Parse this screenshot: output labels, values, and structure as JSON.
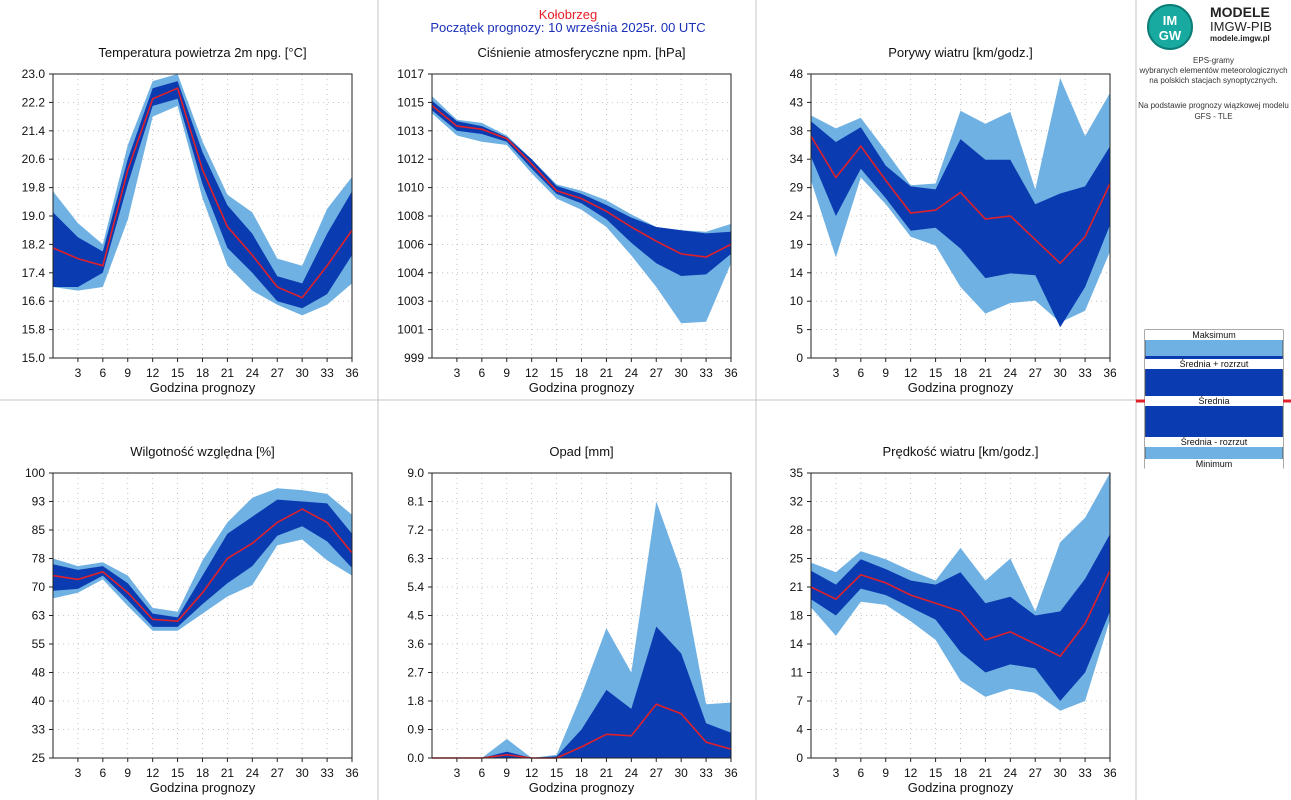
{
  "header": {
    "station": "Kołobrzeg",
    "start": "Początek prognozy: 10 września 2025r. 00 UTC"
  },
  "branding": {
    "logo_text": "IMGW",
    "line1": "MODELE",
    "line2": "IMGW-PIB",
    "line3": "modele.imgw.pl"
  },
  "description": {
    "line1": "EPS-gramy",
    "line2": "wybranych elementów meteorologicznych",
    "line3": "na polskich stacjach synoptycznych.",
    "line4": "Na podstawie prognozy wiązkowej modelu",
    "line5": "GFS - TLE"
  },
  "legend": {
    "max": "Maksimum",
    "mean_plus": "Średnia + rozrzut",
    "mean": "Średnia",
    "mean_minus": "Średnia - rozrzut",
    "min": "Minimum"
  },
  "colors": {
    "light": "#6fb1e3",
    "dark": "#0a3bb0",
    "mean": "#e0202a",
    "grid": "#b8b8b8",
    "divider": "#c4c4c4",
    "legend_bar": "#e0202a"
  },
  "chart_data": [
    {
      "type": "area",
      "id": "temp",
      "title": "Temperatura powietrza 2m npg. [°C]",
      "xlabel": "Godzina prognozy",
      "x": [
        0,
        3,
        6,
        9,
        12,
        15,
        18,
        21,
        24,
        27,
        30,
        33,
        36
      ],
      "x_ticks": [
        3,
        6,
        9,
        12,
        15,
        18,
        21,
        24,
        27,
        30,
        33,
        36
      ],
      "xlim": [
        0,
        36
      ],
      "ylim": [
        15.0,
        23.0
      ],
      "y_ticks": [
        15.0,
        15.8,
        16.6,
        17.4,
        18.2,
        19.0,
        19.8,
        20.6,
        21.4,
        22.2,
        23.0
      ],
      "y_tick_labels": [
        "15.0",
        "15.8",
        "16.6",
        "17.4",
        "18.2",
        "19.0",
        "19.8",
        "20.6",
        "21.4",
        "22.2",
        "23.0"
      ],
      "series": {
        "max": [
          19.7,
          18.8,
          18.2,
          21.0,
          22.8,
          23.0,
          21.1,
          19.6,
          19.1,
          17.8,
          17.6,
          19.2,
          20.1
        ],
        "hi": [
          19.1,
          18.4,
          18.0,
          20.6,
          22.6,
          22.8,
          20.8,
          19.3,
          18.5,
          17.3,
          17.1,
          18.5,
          19.7
        ],
        "mean": [
          18.1,
          17.8,
          17.6,
          20.3,
          22.3,
          22.6,
          20.3,
          18.7,
          17.9,
          17.0,
          16.7,
          17.6,
          18.6
        ],
        "lo": [
          17.0,
          17.0,
          17.4,
          19.9,
          22.1,
          22.3,
          19.9,
          18.1,
          17.4,
          16.6,
          16.4,
          16.8,
          17.9
        ],
        "min": [
          17.0,
          16.9,
          17.0,
          18.9,
          21.8,
          22.1,
          19.5,
          17.6,
          16.9,
          16.5,
          16.2,
          16.5,
          17.1
        ]
      }
    },
    {
      "type": "area",
      "id": "press",
      "title": "Ciśnienie atmosferyczne npm. [hPa]",
      "xlabel": "Godzina prognozy",
      "x": [
        0,
        3,
        6,
        9,
        12,
        15,
        18,
        21,
        24,
        27,
        30,
        33,
        36
      ],
      "x_ticks": [
        3,
        6,
        9,
        12,
        15,
        18,
        21,
        24,
        27,
        30,
        33,
        36
      ],
      "xlim": [
        0,
        36
      ],
      "ylim": [
        999,
        1017
      ],
      "y_ticks": [
        999,
        1000.8,
        1002.6,
        1004.4,
        1006.2,
        1008,
        1009.8,
        1011.6,
        1013.4,
        1015.2,
        1017
      ],
      "y_tick_labels": [
        "999",
        "1001",
        "1003",
        "1004",
        "1006",
        "1008",
        "1010",
        "1012",
        "1013",
        "1015",
        "1017"
      ],
      "series": {
        "max": [
          1015.6,
          1014.1,
          1013.9,
          1013.1,
          1011.6,
          1010.0,
          1009.6,
          1009.0,
          1008.1,
          1007.3,
          1007.1,
          1007.0,
          1007.5
        ],
        "hi": [
          1015.3,
          1014.0,
          1013.7,
          1013.0,
          1011.6,
          1009.9,
          1009.4,
          1008.7,
          1007.9,
          1007.3,
          1007.1,
          1006.9,
          1007.0
        ],
        "mean": [
          1015.0,
          1013.7,
          1013.5,
          1012.9,
          1011.3,
          1009.6,
          1009.1,
          1008.3,
          1007.3,
          1006.4,
          1005.6,
          1005.4,
          1006.2
        ],
        "lo": [
          1014.7,
          1013.4,
          1013.2,
          1012.7,
          1011.0,
          1009.4,
          1008.8,
          1007.8,
          1006.3,
          1005.0,
          1004.2,
          1004.3,
          1005.6
        ],
        "min": [
          1014.5,
          1013.1,
          1012.7,
          1012.5,
          1010.7,
          1009.1,
          1008.4,
          1007.3,
          1005.5,
          1003.5,
          1001.2,
          1001.3,
          1005.0
        ]
      }
    },
    {
      "type": "area",
      "id": "gust",
      "title": "Porywy wiatru [km/godz.]",
      "xlabel": "Godzina prognozy",
      "x": [
        0,
        3,
        6,
        9,
        12,
        15,
        18,
        21,
        24,
        27,
        30,
        33,
        36
      ],
      "x_ticks": [
        3,
        6,
        9,
        12,
        15,
        18,
        21,
        24,
        27,
        30,
        33,
        36
      ],
      "xlim": [
        0,
        36
      ],
      "ylim": [
        0,
        48
      ],
      "y_ticks": [
        0,
        4.8,
        9.6,
        14.4,
        19.2,
        24,
        28.8,
        33.6,
        38.4,
        43.2,
        48
      ],
      "y_tick_labels": [
        "0",
        "5",
        "10",
        "14",
        "19",
        "24",
        "29",
        "34",
        "38",
        "43",
        "48"
      ],
      "series": {
        "max": [
          41.0,
          38.8,
          40.6,
          35.0,
          29.2,
          29.5,
          41.8,
          39.6,
          41.6,
          28.5,
          47.3,
          37.5,
          44.8
        ],
        "hi": [
          40.0,
          36.5,
          39.0,
          32.5,
          29.0,
          28.5,
          37.0,
          33.5,
          33.5,
          26.0,
          27.8,
          29.0,
          35.8
        ],
        "mean": [
          37.5,
          30.5,
          35.8,
          30.0,
          24.5,
          25.0,
          28.0,
          23.5,
          24.0,
          20.0,
          16.0,
          20.5,
          29.5
        ],
        "lo": [
          34.0,
          24.0,
          32.0,
          27.0,
          21.5,
          22.0,
          18.5,
          13.5,
          14.3,
          14.0,
          5.2,
          12.0,
          22.5
        ],
        "min": [
          30.0,
          17.0,
          30.5,
          26.0,
          20.5,
          19.0,
          12.0,
          7.5,
          9.3,
          9.7,
          6.0,
          8.0,
          18.0
        ]
      }
    },
    {
      "type": "area",
      "id": "rh",
      "title": "Wilgotność względna [%]",
      "xlabel": "Godzina prognozy",
      "x": [
        0,
        3,
        6,
        9,
        12,
        15,
        18,
        21,
        24,
        27,
        30,
        33,
        36
      ],
      "x_ticks": [
        3,
        6,
        9,
        12,
        15,
        18,
        21,
        24,
        27,
        30,
        33,
        36
      ],
      "xlim": [
        0,
        36
      ],
      "ylim": [
        25,
        100
      ],
      "y_ticks": [
        25,
        32.5,
        40,
        47.5,
        55,
        62.5,
        70,
        77.5,
        85,
        92.5,
        100
      ],
      "y_tick_labels": [
        "25",
        "33",
        "40",
        "48",
        "55",
        "63",
        "70",
        "78",
        "85",
        "93",
        "100"
      ],
      "series": {
        "max": [
          77.5,
          75.5,
          76.5,
          73.0,
          64.5,
          63.5,
          77.0,
          87.0,
          93.5,
          96.0,
          95.5,
          94.5,
          89.0
        ],
        "hi": [
          76.0,
          74.5,
          75.5,
          71.0,
          63.0,
          62.0,
          73.0,
          84.0,
          88.5,
          93.0,
          92.5,
          92.0,
          84.0
        ],
        "mean": [
          73.0,
          72.0,
          74.0,
          68.5,
          61.5,
          61.0,
          68.5,
          77.5,
          81.5,
          87.0,
          90.5,
          87.0,
          79.0
        ],
        "lo": [
          69.0,
          69.5,
          73.0,
          66.5,
          59.5,
          59.5,
          65.5,
          71.0,
          75.5,
          83.5,
          86.0,
          82.0,
          75.0
        ],
        "min": [
          67.0,
          68.5,
          72.0,
          65.0,
          58.5,
          58.5,
          63.0,
          67.5,
          70.5,
          81.0,
          82.5,
          77.0,
          73.0
        ]
      }
    },
    {
      "type": "area",
      "id": "precip",
      "title": "Opad [mm]",
      "xlabel": "Godzina prognozy",
      "x": [
        0,
        3,
        6,
        9,
        12,
        15,
        18,
        21,
        24,
        27,
        30,
        33,
        36
      ],
      "x_ticks": [
        3,
        6,
        9,
        12,
        15,
        18,
        21,
        24,
        27,
        30,
        33,
        36
      ],
      "xlim": [
        0,
        36
      ],
      "ylim": [
        0,
        9
      ],
      "y_ticks": [
        0,
        0.9,
        1.8,
        2.7,
        3.6,
        4.5,
        5.4,
        6.3,
        7.2,
        8.1,
        9.0
      ],
      "y_tick_labels": [
        "0.0",
        "0.9",
        "1.8",
        "2.7",
        "3.6",
        "4.5",
        "5.4",
        "6.3",
        "7.2",
        "8.1",
        "9.0"
      ],
      "series": {
        "max": [
          0.0,
          0.0,
          0.0,
          0.6,
          0.0,
          0.1,
          2.0,
          4.1,
          2.7,
          8.1,
          5.9,
          1.7,
          1.75
        ],
        "hi": [
          0.0,
          0.0,
          0.0,
          0.2,
          0.0,
          0.05,
          0.9,
          2.15,
          1.55,
          4.15,
          3.3,
          1.1,
          0.8
        ],
        "mean": [
          0.0,
          0.0,
          0.0,
          0.1,
          0.0,
          0.0,
          0.35,
          0.75,
          0.7,
          1.7,
          1.4,
          0.5,
          0.28
        ],
        "lo": [
          0.0,
          0.0,
          0.0,
          0.0,
          0.0,
          0.0,
          0.0,
          0.0,
          0.0,
          0.0,
          0.0,
          0.0,
          0.0
        ],
        "min": [
          0.0,
          0.0,
          0.0,
          0.0,
          0.0,
          0.0,
          0.0,
          0.0,
          0.0,
          0.0,
          0.0,
          0.0,
          0.0
        ]
      }
    },
    {
      "type": "area",
      "id": "wind",
      "title": "Prędkość wiatru [km/godz.]",
      "xlabel": "Godzina prognozy",
      "x": [
        0,
        3,
        6,
        9,
        12,
        15,
        18,
        21,
        24,
        27,
        30,
        33,
        36
      ],
      "x_ticks": [
        3,
        6,
        9,
        12,
        15,
        18,
        21,
        24,
        27,
        30,
        33,
        36
      ],
      "xlim": [
        0,
        36
      ],
      "ylim": [
        0,
        35
      ],
      "y_ticks": [
        0,
        3.5,
        7,
        10.5,
        14,
        17.5,
        21,
        24.5,
        28,
        31.5,
        35
      ],
      "y_tick_labels": [
        "0",
        "4",
        "7",
        "11",
        "14",
        "18",
        "21",
        "25",
        "28",
        "32",
        "35"
      ],
      "series": {
        "max": [
          24.0,
          22.8,
          25.4,
          24.4,
          23.0,
          21.8,
          25.8,
          21.8,
          24.5,
          18.0,
          26.5,
          29.5,
          35.0
        ],
        "hi": [
          23.0,
          21.3,
          24.4,
          23.2,
          21.8,
          21.3,
          22.8,
          19.0,
          19.8,
          17.5,
          18.0,
          22.0,
          27.5
        ],
        "mean": [
          21.0,
          19.5,
          22.5,
          21.5,
          20.0,
          19.0,
          18.0,
          14.5,
          15.5,
          14.0,
          12.5,
          16.5,
          23.0
        ],
        "lo": [
          19.5,
          17.5,
          20.8,
          20.0,
          18.5,
          17.0,
          13.0,
          10.5,
          11.5,
          11.0,
          7.0,
          10.5,
          18.0
        ],
        "min": [
          18.5,
          15.0,
          19.2,
          18.8,
          16.8,
          14.5,
          9.5,
          7.5,
          8.5,
          8.0,
          5.8,
          7.0,
          17.0
        ]
      }
    }
  ]
}
